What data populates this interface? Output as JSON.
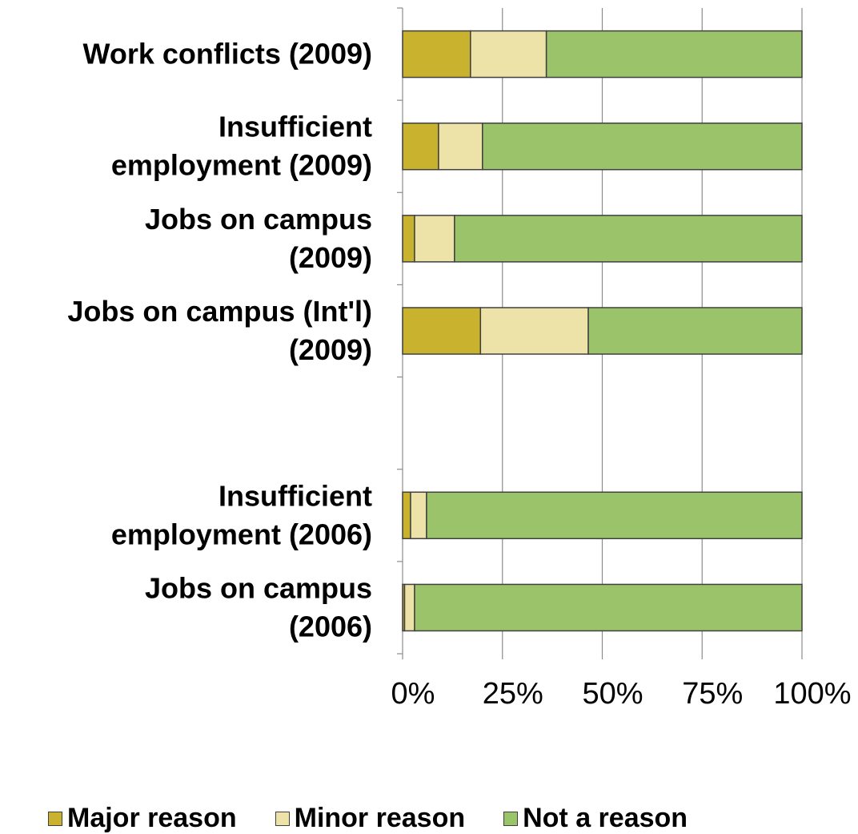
{
  "chart_data": {
    "type": "bar",
    "orientation": "horizontal",
    "stacked": true,
    "stack_mode": "percent",
    "categories": [
      [
        "Work conflicts (2009)"
      ],
      [
        "Insufficient",
        "employment (2009)"
      ],
      [
        "Jobs on campus",
        "(2009)"
      ],
      [
        "Jobs on campus (Int'l)",
        "(2009)"
      ],
      [],
      [
        "Insufficient",
        "employment (2006)"
      ],
      [
        "Jobs on campus",
        "(2006)"
      ]
    ],
    "series": [
      {
        "name": "Major reason",
        "color": "#C9B22E",
        "values": [
          17,
          9,
          3,
          19.5,
          null,
          2,
          0.5
        ]
      },
      {
        "name": "Minor reason",
        "color": "#EDE2A8",
        "values": [
          19,
          11,
          10,
          27,
          null,
          4,
          2.5
        ]
      },
      {
        "name": "Not a reason",
        "color": "#9BC46A",
        "values": [
          64,
          80,
          87,
          53.5,
          null,
          94,
          97
        ]
      }
    ],
    "x_ticks": [
      "0%",
      "25%",
      "50%",
      "75%",
      "100%"
    ],
    "xlim": [
      0,
      100
    ],
    "grid": "vertical",
    "legend": "bottom"
  }
}
